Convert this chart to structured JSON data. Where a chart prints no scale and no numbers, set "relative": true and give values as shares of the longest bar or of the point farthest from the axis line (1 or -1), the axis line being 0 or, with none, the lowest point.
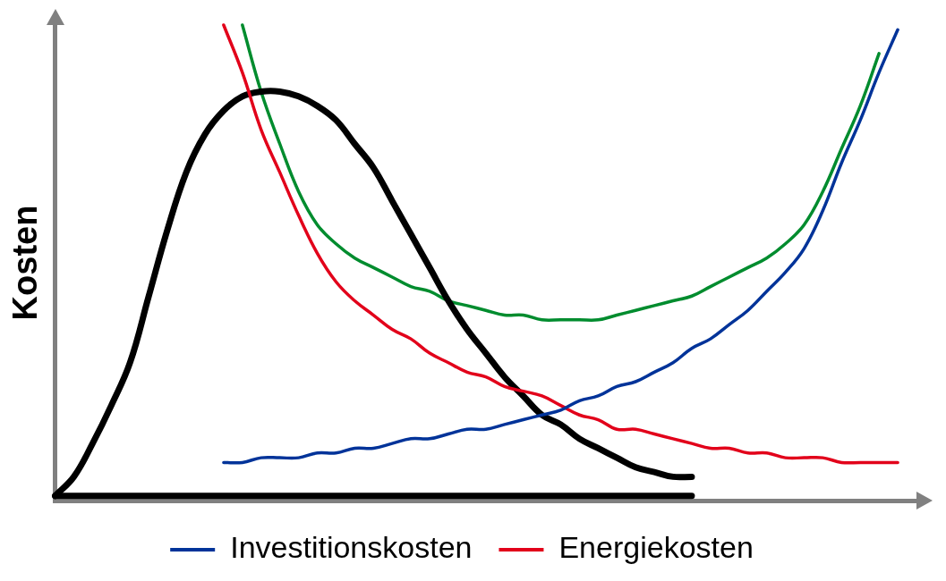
{
  "chart_data": {
    "type": "line",
    "relative": true,
    "ylabel": "Kosten",
    "legend": "bottom",
    "marker": "none",
    "line_style": "solid",
    "categories": [
      null,
      null,
      null,
      null,
      null,
      null,
      null,
      null,
      null,
      null,
      null,
      null,
      null,
      null,
      null,
      null,
      null,
      null,
      null,
      null,
      null,
      null,
      null,
      null,
      null,
      null,
      null,
      null,
      null,
      null,
      null,
      null,
      null,
      null,
      null,
      null,
      null,
      null,
      null,
      null,
      null,
      null,
      null,
      null,
      null,
      null,
      null
    ],
    "series": [
      {
        "color": "#000000",
        "values": [
          0.01,
          0.05,
          0.12,
          0.2,
          0.29,
          0.43,
          0.57,
          0.69,
          0.77,
          0.82,
          0.85,
          0.86,
          0.86,
          0.85,
          0.83,
          0.8,
          0.75,
          0.7,
          0.63,
          0.56,
          0.49,
          0.42,
          0.36,
          0.31,
          0.26,
          0.22,
          0.18,
          0.16,
          0.13,
          0.11,
          0.09,
          0.07,
          0.06,
          0.05,
          0.05,
          null,
          null,
          null,
          null,
          null,
          null,
          null,
          null,
          null,
          null,
          null,
          null
        ]
      },
      {
        "color": "#000000",
        "values": [
          0.01,
          0.01,
          0.01,
          0.01,
          0.01,
          0.01,
          0.01,
          0.01,
          0.01,
          0.01,
          0.01,
          0.01,
          0.01,
          0.01,
          0.01,
          0.01,
          0.01,
          0.01,
          0.01,
          0.01,
          0.01,
          0.01,
          0.01,
          0.01,
          0.01,
          0.01,
          0.01,
          0.01,
          0.01,
          0.01,
          0.01,
          0.01,
          0.01,
          0.01,
          0.01,
          null,
          null,
          null,
          null,
          null,
          null,
          null,
          null,
          null,
          null,
          null,
          null
        ]
      },
      {
        "color": "#008c2e",
        "values": [
          null,
          null,
          null,
          null,
          null,
          null,
          null,
          null,
          null,
          null,
          1.0,
          0.86,
          0.75,
          0.65,
          0.58,
          0.54,
          0.51,
          0.49,
          0.47,
          0.45,
          0.44,
          0.42,
          0.41,
          0.4,
          0.39,
          0.39,
          0.38,
          0.38,
          0.38,
          0.38,
          0.39,
          0.4,
          0.41,
          0.42,
          0.43,
          0.45,
          0.47,
          0.49,
          0.51,
          0.54,
          0.58,
          0.65,
          0.74,
          0.83,
          0.94,
          null,
          null
        ]
      },
      {
        "name": "Investitionskosten",
        "color": "#003399",
        "values": [
          null,
          null,
          null,
          null,
          null,
          null,
          null,
          null,
          null,
          0.08,
          0.08,
          0.09,
          0.09,
          0.09,
          0.1,
          0.1,
          0.11,
          0.11,
          0.12,
          0.13,
          0.13,
          0.14,
          0.15,
          0.15,
          0.16,
          0.17,
          0.18,
          0.19,
          0.21,
          0.22,
          0.24,
          0.25,
          0.27,
          0.29,
          0.32,
          0.34,
          0.37,
          0.4,
          0.44,
          0.48,
          0.53,
          0.61,
          0.71,
          0.8,
          0.9,
          0.99,
          null
        ]
      },
      {
        "name": "Energiekosten",
        "color": "#e2001a",
        "values": [
          null,
          null,
          null,
          null,
          null,
          null,
          null,
          null,
          null,
          1.0,
          0.9,
          0.78,
          0.69,
          0.6,
          0.52,
          0.46,
          0.42,
          0.39,
          0.36,
          0.34,
          0.31,
          0.29,
          0.27,
          0.26,
          0.24,
          0.23,
          0.22,
          0.2,
          0.18,
          0.17,
          0.15,
          0.15,
          0.14,
          0.13,
          0.12,
          0.11,
          0.11,
          0.1,
          0.1,
          0.09,
          0.09,
          0.09,
          0.08,
          0.08,
          0.08,
          0.08,
          null
        ]
      }
    ]
  }
}
